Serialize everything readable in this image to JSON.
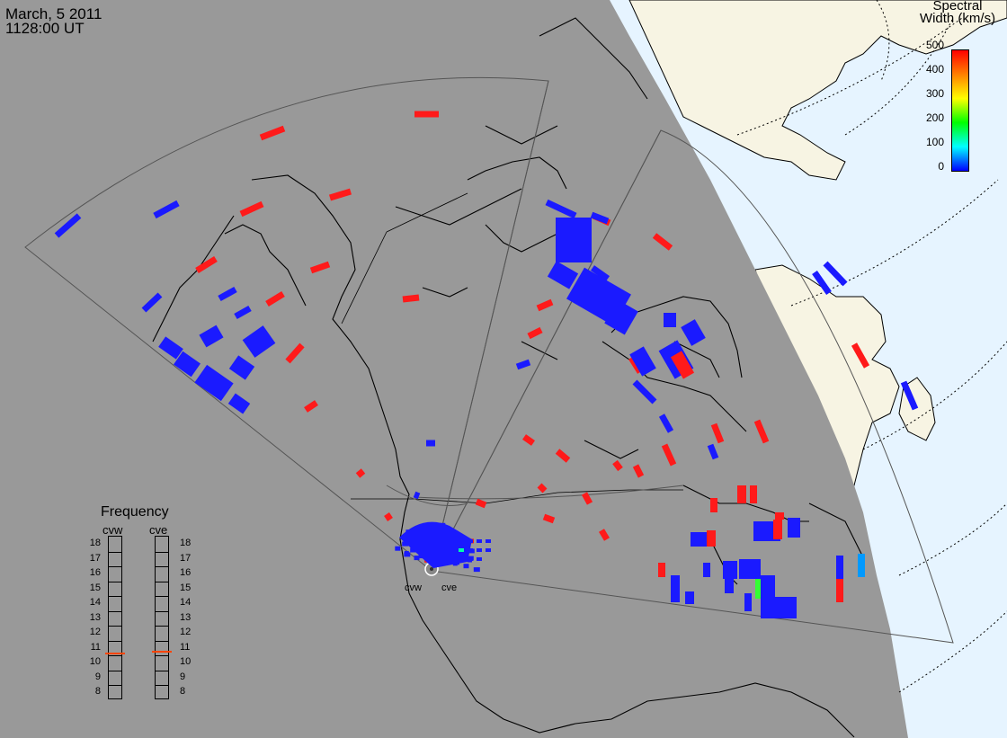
{
  "header": {
    "date": "March, 5 2011",
    "time": "1128:00 UT"
  },
  "colorbar": {
    "title_line1": "Spectral",
    "title_line2": "Width (km/s)",
    "ticks": [
      "500",
      "400",
      "300",
      "200",
      "100",
      "0"
    ],
    "colors": [
      "#ff0000",
      "#ff8000",
      "#ffff00",
      "#00ff00",
      "#00ffff",
      "#0000ff"
    ]
  },
  "frequency_panel": {
    "title": "Frequency",
    "radars": [
      {
        "label": "cvw",
        "value": 10.7
      },
      {
        "label": "cve",
        "value": 10.8
      }
    ],
    "ticks": [
      "18",
      "17",
      "16",
      "15",
      "14",
      "13",
      "12",
      "11",
      "10",
      "9",
      "8"
    ],
    "indicator_color": "#ff4400"
  },
  "radars": [
    {
      "label": "cvw"
    },
    {
      "label": "cve"
    }
  ],
  "colors": {
    "night": "#999999",
    "day_ocean": "#e6f4ff",
    "day_land": "#f7f4e3",
    "low_width": "#1a1aff",
    "high_width": "#ff1a1a"
  }
}
